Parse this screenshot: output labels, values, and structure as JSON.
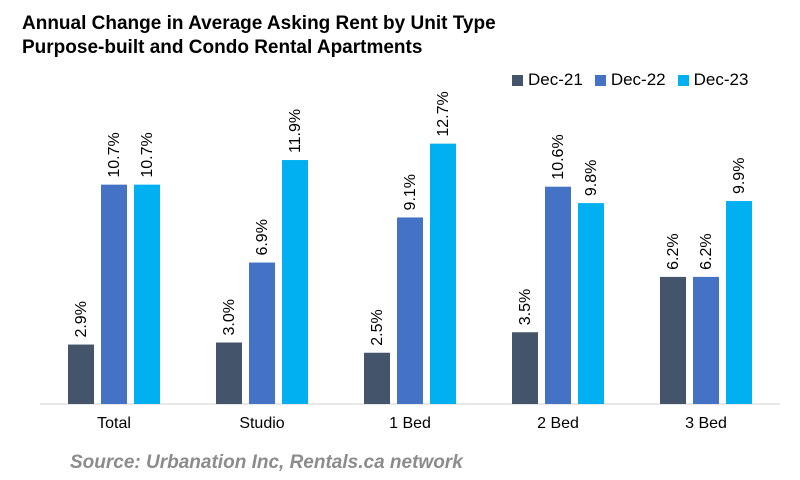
{
  "chart_data": {
    "type": "bar",
    "title": "Annual Change in Average Asking Rent by Unit Type",
    "subtitle": "Purpose-built and Condo Rental Apartments",
    "categories": [
      "Total",
      "Studio",
      "1 Bed",
      "2 Bed",
      "3 Bed"
    ],
    "series": [
      {
        "name": "Dec-21",
        "color": "#44546a",
        "values": [
          2.9,
          3.0,
          2.5,
          3.5,
          6.2
        ],
        "labels": [
          "2.9%",
          "3.0%",
          "2.5%",
          "3.5%",
          "6.2%"
        ]
      },
      {
        "name": "Dec-22",
        "color": "#4472c4",
        "values": [
          10.7,
          6.9,
          9.1,
          10.6,
          6.2
        ],
        "labels": [
          "10.7%",
          "6.9%",
          "9.1%",
          "10.6%",
          "6.2%"
        ]
      },
      {
        "name": "Dec-23",
        "color": "#00b0f0",
        "values": [
          10.7,
          11.9,
          12.7,
          9.8,
          9.9
        ],
        "labels": [
          "10.7%",
          "11.9%",
          "12.7%",
          "9.8%",
          "9.9%"
        ]
      }
    ],
    "ylim": [
      0,
      14
    ],
    "yaxis_visible": false,
    "grid": false,
    "legend_position": "top-right",
    "data_labels": true,
    "label_orientation": "rotated-vertical"
  },
  "source": "Source: Urbanation Inc, Rentals.ca network"
}
